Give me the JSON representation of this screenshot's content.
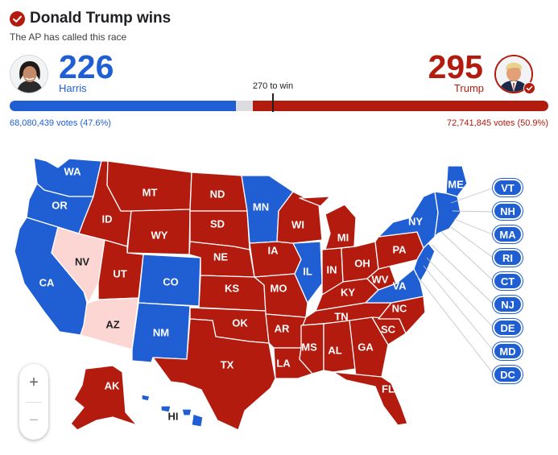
{
  "header": {
    "title": "Donald Trump wins",
    "subtitle": "The AP has called this race"
  },
  "candidates": {
    "harris": {
      "name": "Harris",
      "electoral_votes": "226",
      "votes_text": "68,080,439 votes (47.6%)",
      "color": "#1f5fd3"
    },
    "trump": {
      "name": "Trump",
      "electoral_votes": "295",
      "votes_text": "72,741,845 votes (50.9%)",
      "color": "#b31b0f",
      "winner": true
    }
  },
  "threshold": {
    "label": "270 to win",
    "value": 270,
    "total": 538
  },
  "colors": {
    "dem": "#1f5fd3",
    "rep": "#b31b0f",
    "dem_lean": "#aecbfa",
    "rep_lean": "#fbd6d2",
    "undecided": "#dadce0"
  },
  "states": {
    "WA": "dem",
    "OR": "dem",
    "CA": "dem",
    "NV": "rep_lean",
    "ID": "rep",
    "MT": "rep",
    "WY": "rep",
    "UT": "rep",
    "AZ": "rep_lean",
    "CO": "dem",
    "NM": "dem",
    "ND": "rep",
    "SD": "rep",
    "NE": "rep",
    "KS": "rep",
    "OK": "rep",
    "TX": "rep",
    "MN": "dem",
    "IA": "rep",
    "MO": "rep",
    "AR": "rep",
    "LA": "rep",
    "WI": "rep",
    "IL": "dem",
    "MI": "rep",
    "IN": "rep",
    "OH": "rep",
    "KY": "rep",
    "TN": "rep",
    "MS": "rep",
    "AL": "rep",
    "GA": "rep",
    "FL": "rep",
    "SC": "rep",
    "NC": "rep",
    "VA": "dem",
    "WV": "rep",
    "PA": "rep",
    "NY": "dem",
    "ME": "dem",
    "AK": "rep",
    "HI": "dem"
  },
  "small_states": [
    "VT",
    "NH",
    "MA",
    "RI",
    "CT",
    "NJ",
    "DE",
    "MD",
    "DC"
  ],
  "zoom": {
    "in_label": "+",
    "out_label": "−"
  }
}
